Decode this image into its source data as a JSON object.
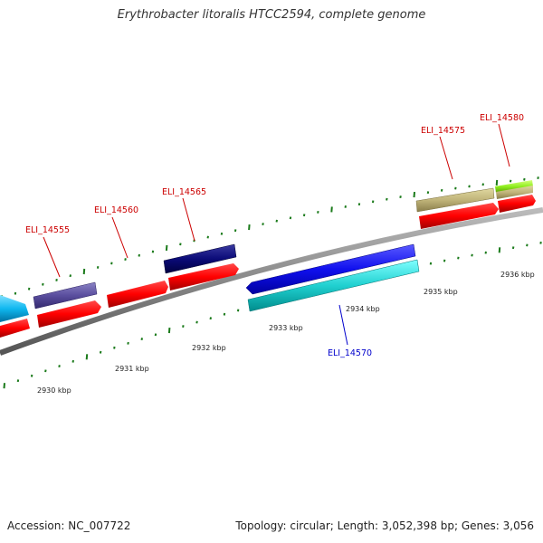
{
  "title": "Erythrobacter litoralis HTCC2594, complete genome",
  "footer": {
    "accession": "Accession: NC_007722",
    "summary": "Topology: circular; Length: 3,052,398 bp; Genes: 3,056"
  },
  "ticks": [
    {
      "label": "2930 kbp"
    },
    {
      "label": "2931 kbp"
    },
    {
      "label": "2932 kbp"
    },
    {
      "label": "2933 kbp"
    },
    {
      "label": "2934 kbp"
    },
    {
      "label": "2935 kbp"
    },
    {
      "label": "2936 kbp"
    }
  ],
  "genes": [
    {
      "id": "ELI_14555",
      "color": "#cc0000"
    },
    {
      "id": "ELI_14560",
      "color": "#cc0000"
    },
    {
      "id": "ELI_14565",
      "color": "#cc0000"
    },
    {
      "id": "ELI_14570",
      "color": "#0000cc"
    },
    {
      "id": "ELI_14575",
      "color": "#cc0000"
    },
    {
      "id": "ELI_14580",
      "color": "#cc0000"
    }
  ]
}
